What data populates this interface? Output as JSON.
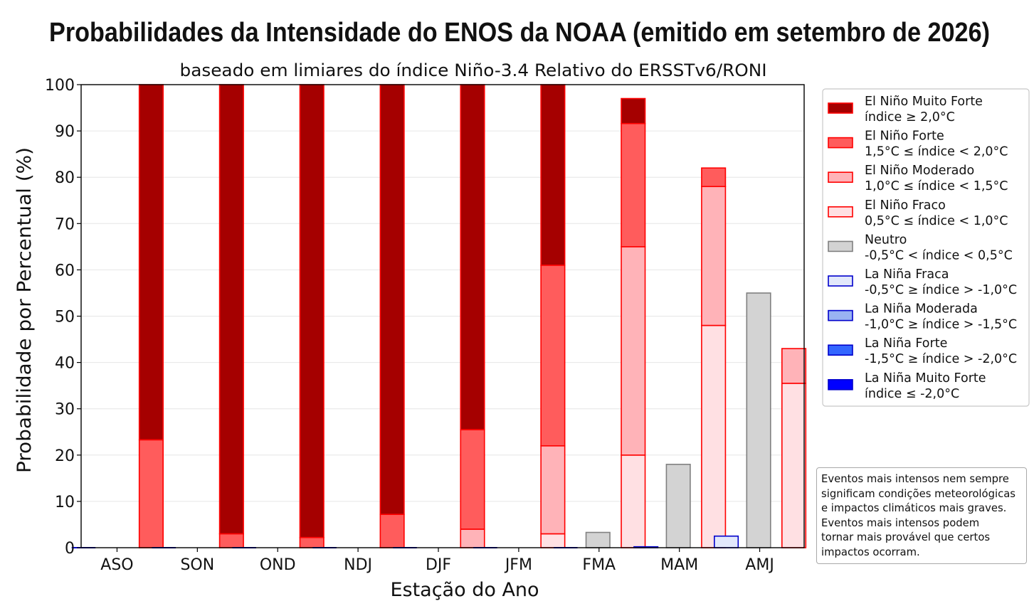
{
  "chart_data": {
    "type": "bar",
    "stacked": true,
    "title": "Probabilidades da Intensidade do ENOS da NOAA (emitido em setembro de 2026)",
    "subtitle": "baseado em limiares do índice Niño-3.4 Relativo do ERSSTv6/RONI",
    "xlabel": "Estação do Ano",
    "ylabel": "Probabilidade por Percentual (%)",
    "ylim": [
      0,
      100
    ],
    "yticks": [
      0,
      10,
      20,
      30,
      40,
      50,
      60,
      70,
      80,
      90,
      100
    ],
    "grid": "horizontal",
    "legend_position": "right",
    "categories": [
      "ASO",
      "SON",
      "OND",
      "NDJ",
      "DJF",
      "JFM",
      "FMA",
      "MAM",
      "AMJ"
    ],
    "groups": [
      {
        "name": "La Niña",
        "position": "left"
      },
      {
        "name": "Neutro",
        "position": "center"
      },
      {
        "name": "El Niño",
        "position": "right"
      }
    ],
    "series": [
      {
        "name": "La Niña Muito Forte",
        "range": "índice ≤ -2,0°C",
        "group": "La Niña",
        "fill": "#0000ff",
        "edge": "#0000cc",
        "values": [
          0,
          0,
          0,
          0,
          0,
          0,
          0,
          0,
          0
        ]
      },
      {
        "name": "La Niña Forte",
        "range": "-1,5°C ≥ índice > -2,0°C",
        "group": "La Niña",
        "fill": "#3366ff",
        "edge": "#0000cc",
        "values": [
          0,
          0,
          0,
          0,
          0,
          0,
          0,
          0,
          0
        ]
      },
      {
        "name": "La Niña Moderada",
        "range": "-1,0°C ≥ índice > -1,5°C",
        "group": "La Niña",
        "fill": "#99b3f2",
        "edge": "#0000cc",
        "values": [
          0,
          0,
          0,
          0,
          0,
          0,
          0,
          0,
          0
        ]
      },
      {
        "name": "La Niña Fraca",
        "range": "-0,5°C ≥ índice > -1,0°C",
        "group": "La Niña",
        "fill": "#e2e8fb",
        "edge": "#0000cc",
        "values": [
          0,
          0,
          0,
          0,
          0,
          0,
          0,
          0.2,
          2.5
        ]
      },
      {
        "name": "Neutro",
        "range": "-0,5°C < índice < 0,5°C",
        "group": "Neutro",
        "fill": "#d3d3d3",
        "edge": "#808080",
        "values": [
          0,
          0,
          0,
          0,
          0,
          0,
          3.3,
          18,
          55
        ]
      },
      {
        "name": "El Niño Fraco",
        "range": "0,5°C ≤ índice < 1,0°C",
        "group": "El Niño",
        "fill": "#ffe0e3",
        "edge": "#ff0000",
        "values": [
          0,
          0,
          0,
          0,
          0,
          3,
          20,
          48,
          35.5
        ]
      },
      {
        "name": "El Niño Moderado",
        "range": "1,0°C ≤ índice < 1,5°C",
        "group": "El Niño",
        "fill": "#ffb3b8",
        "edge": "#ff0000",
        "values": [
          0,
          0,
          0,
          0,
          4,
          19,
          45,
          30,
          7.5
        ]
      },
      {
        "name": "El Niño Forte",
        "range": "1,5°C ≤ índice < 2,0°C",
        "group": "El Niño",
        "fill": "#ff5c5c",
        "edge": "#ff0000",
        "values": [
          23.3,
          3,
          2.2,
          7.2,
          21.5,
          39,
          26.6,
          4,
          0
        ]
      },
      {
        "name": "El Niño Muito Forte",
        "range": "índice ≥ 2,0°C",
        "group": "El Niño",
        "fill": "#a50000",
        "edge": "#ff0000",
        "values": [
          76.7,
          97,
          97.8,
          92.8,
          74.5,
          39,
          5.4,
          0,
          0
        ]
      }
    ]
  },
  "note": {
    "lines": [
      "Eventos mais intensos nem sempre",
      "significam condições meteorológicas",
      "e impactos climáticos mais graves.",
      "Eventos mais intensos podem",
      "tornar mais provável que certos",
      "impactos ocorram."
    ]
  }
}
